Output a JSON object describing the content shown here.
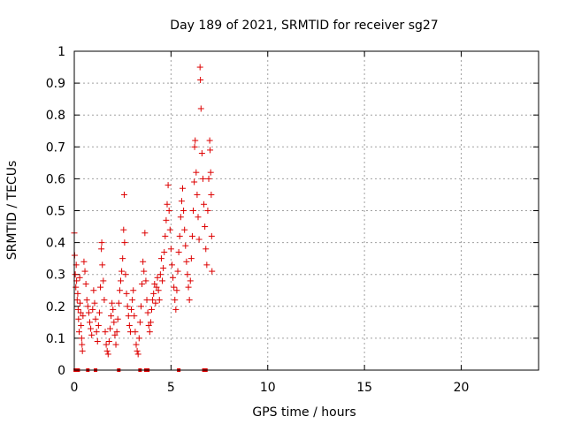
{
  "chart_data": {
    "type": "scatter",
    "title": "Day 189 of 2021, SRMTID for receiver sg27",
    "xlabel": "GPS time / hours",
    "ylabel": "SRMTID / TECUs",
    "xlim": [
      0,
      24
    ],
    "ylim": [
      0,
      1
    ],
    "x_ticks": [
      0,
      5,
      10,
      15,
      20
    ],
    "y_ticks": [
      0,
      0.1,
      0.2,
      0.3,
      0.4,
      0.5,
      0.6,
      0.7,
      0.8,
      0.9,
      1
    ],
    "grid": true,
    "marker": "+",
    "colors": {
      "series": "#dd0000",
      "grid": "#a0a0a0",
      "axes": "#000000"
    },
    "series": [
      {
        "name": "sg27",
        "points": [
          [
            0.0,
            0.43
          ],
          [
            0.02,
            0.36
          ],
          [
            0.05,
            0.3
          ],
          [
            0.08,
            0.26
          ],
          [
            0.1,
            0.33
          ],
          [
            0.12,
            0.28
          ],
          [
            0.15,
            0.22
          ],
          [
            0.18,
            0.24
          ],
          [
            0.2,
            0.19
          ],
          [
            0.22,
            0.16
          ],
          [
            0.25,
            0.12
          ],
          [
            0.28,
            0.29
          ],
          [
            0.3,
            0.21
          ],
          [
            0.33,
            0.18
          ],
          [
            0.35,
            0.14
          ],
          [
            0.38,
            0.1
          ],
          [
            0.4,
            0.08
          ],
          [
            0.42,
            0.06
          ],
          [
            0.45,
            0.17
          ],
          [
            0.5,
            0.34
          ],
          [
            0.55,
            0.31
          ],
          [
            0.6,
            0.27
          ],
          [
            0.65,
            0.22
          ],
          [
            0.7,
            0.2
          ],
          [
            0.75,
            0.18
          ],
          [
            0.8,
            0.15
          ],
          [
            0.85,
            0.13
          ],
          [
            0.9,
            0.11
          ],
          [
            0.95,
            0.19
          ],
          [
            1.0,
            0.25
          ],
          [
            1.05,
            0.21
          ],
          [
            1.1,
            0.16
          ],
          [
            1.15,
            0.12
          ],
          [
            1.2,
            0.09
          ],
          [
            1.25,
            0.14
          ],
          [
            1.3,
            0.18
          ],
          [
            1.35,
            0.26
          ],
          [
            1.4,
            0.38
          ],
          [
            1.42,
            0.4
          ],
          [
            1.45,
            0.33
          ],
          [
            1.5,
            0.28
          ],
          [
            1.55,
            0.22
          ],
          [
            1.6,
            0.12
          ],
          [
            1.65,
            0.08
          ],
          [
            1.7,
            0.06
          ],
          [
            1.75,
            0.05
          ],
          [
            1.8,
            0.09
          ],
          [
            1.85,
            0.13
          ],
          [
            1.9,
            0.17
          ],
          [
            1.95,
            0.21
          ],
          [
            2.0,
            0.19
          ],
          [
            2.05,
            0.15
          ],
          [
            2.1,
            0.11
          ],
          [
            2.15,
            0.08
          ],
          [
            2.2,
            0.12
          ],
          [
            2.25,
            0.16
          ],
          [
            2.3,
            0.21
          ],
          [
            2.35,
            0.25
          ],
          [
            2.4,
            0.28
          ],
          [
            2.45,
            0.31
          ],
          [
            2.5,
            0.35
          ],
          [
            2.55,
            0.44
          ],
          [
            2.58,
            0.55
          ],
          [
            2.6,
            0.4
          ],
          [
            2.65,
            0.3
          ],
          [
            2.7,
            0.24
          ],
          [
            2.75,
            0.2
          ],
          [
            2.8,
            0.17
          ],
          [
            2.85,
            0.14
          ],
          [
            2.9,
            0.12
          ],
          [
            2.95,
            0.19
          ],
          [
            3.0,
            0.22
          ],
          [
            3.05,
            0.25
          ],
          [
            3.1,
            0.17
          ],
          [
            3.15,
            0.12
          ],
          [
            3.2,
            0.08
          ],
          [
            3.25,
            0.06
          ],
          [
            3.3,
            0.05
          ],
          [
            3.35,
            0.1
          ],
          [
            3.4,
            0.15
          ],
          [
            3.45,
            0.2
          ],
          [
            3.5,
            0.27
          ],
          [
            3.55,
            0.34
          ],
          [
            3.6,
            0.31
          ],
          [
            3.65,
            0.43
          ],
          [
            3.7,
            0.28
          ],
          [
            3.75,
            0.22
          ],
          [
            3.8,
            0.18
          ],
          [
            3.85,
            0.14
          ],
          [
            3.9,
            0.12
          ],
          [
            3.95,
            0.15
          ],
          [
            4.0,
            0.19
          ],
          [
            4.05,
            0.22
          ],
          [
            4.1,
            0.24
          ],
          [
            4.15,
            0.27
          ],
          [
            4.2,
            0.21
          ],
          [
            4.25,
            0.26
          ],
          [
            4.3,
            0.29
          ],
          [
            4.35,
            0.25
          ],
          [
            4.4,
            0.22
          ],
          [
            4.45,
            0.3
          ],
          [
            4.5,
            0.35
          ],
          [
            4.55,
            0.28
          ],
          [
            4.6,
            0.32
          ],
          [
            4.65,
            0.37
          ],
          [
            4.7,
            0.42
          ],
          [
            4.75,
            0.47
          ],
          [
            4.8,
            0.52
          ],
          [
            4.85,
            0.58
          ],
          [
            4.9,
            0.5
          ],
          [
            4.95,
            0.44
          ],
          [
            5.0,
            0.38
          ],
          [
            5.05,
            0.33
          ],
          [
            5.1,
            0.29
          ],
          [
            5.15,
            0.26
          ],
          [
            5.2,
            0.22
          ],
          [
            5.25,
            0.19
          ],
          [
            5.3,
            0.25
          ],
          [
            5.35,
            0.31
          ],
          [
            5.4,
            0.37
          ],
          [
            5.45,
            0.42
          ],
          [
            5.5,
            0.48
          ],
          [
            5.55,
            0.53
          ],
          [
            5.6,
            0.57
          ],
          [
            5.65,
            0.5
          ],
          [
            5.7,
            0.44
          ],
          [
            5.75,
            0.39
          ],
          [
            5.8,
            0.34
          ],
          [
            5.85,
            0.3
          ],
          [
            5.9,
            0.26
          ],
          [
            5.95,
            0.22
          ],
          [
            6.0,
            0.28
          ],
          [
            6.05,
            0.35
          ],
          [
            6.1,
            0.42
          ],
          [
            6.15,
            0.5
          ],
          [
            6.2,
            0.59
          ],
          [
            6.22,
            0.7
          ],
          [
            6.25,
            0.72
          ],
          [
            6.3,
            0.62
          ],
          [
            6.35,
            0.55
          ],
          [
            6.4,
            0.48
          ],
          [
            6.45,
            0.41
          ],
          [
            6.5,
            0.95
          ],
          [
            6.52,
            0.91
          ],
          [
            6.55,
            0.82
          ],
          [
            6.6,
            0.68
          ],
          [
            6.65,
            0.6
          ],
          [
            6.7,
            0.52
          ],
          [
            6.75,
            0.45
          ],
          [
            6.8,
            0.38
          ],
          [
            6.85,
            0.33
          ],
          [
            6.9,
            0.5
          ],
          [
            6.95,
            0.6
          ],
          [
            7.0,
            0.72
          ],
          [
            7.02,
            0.69
          ],
          [
            7.05,
            0.62
          ],
          [
            7.08,
            0.55
          ],
          [
            7.1,
            0.42
          ],
          [
            7.12,
            0.31
          ]
        ],
        "baseline_markers_x": [
          0.05,
          0.2,
          0.7,
          1.1,
          2.3,
          3.4,
          3.7,
          3.8,
          5.4,
          6.7,
          6.8
        ]
      }
    ]
  }
}
